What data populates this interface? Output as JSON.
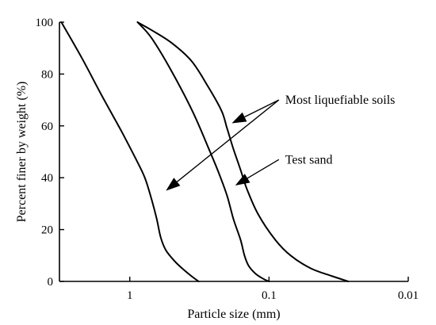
{
  "chart_data": {
    "type": "line",
    "xlabel": "Particle size (mm)",
    "ylabel": "Percent finer by weight (%)",
    "x_scale": "log",
    "x_reversed": true,
    "xlim": [
      3.2,
      0.01
    ],
    "ylim": [
      0,
      100
    ],
    "x_ticks": [
      1,
      0.1,
      0.01
    ],
    "x_tick_labels": [
      "1",
      "0.1",
      "0.01"
    ],
    "y_ticks": [
      0,
      20,
      40,
      60,
      80,
      100
    ],
    "y_tick_labels": [
      "0",
      "20",
      "40",
      "60",
      "80",
      "100"
    ],
    "grid": false,
    "series": [
      {
        "role": "liquefiable-envelope-coarse",
        "x": [
          3.1,
          2.2,
          1.6,
          1.15,
          0.9,
          0.78,
          0.7,
          0.64,
          0.6,
          0.55,
          0.48,
          0.42,
          0.36,
          0.32
        ],
        "y": [
          100,
          86,
          72,
          58,
          47,
          40,
          32,
          24,
          17,
          12,
          8,
          5,
          2,
          0
        ]
      },
      {
        "role": "test-sand",
        "x": [
          0.88,
          0.7,
          0.5,
          0.35,
          0.27,
          0.23,
          0.2,
          0.18,
          0.16,
          0.15,
          0.14,
          0.125,
          0.11,
          0.1
        ],
        "y": [
          100,
          94,
          81,
          65,
          51,
          42,
          33,
          24,
          16,
          10,
          6,
          3,
          1,
          0
        ]
      },
      {
        "role": "liquefiable-envelope-fine",
        "x": [
          0.88,
          0.7,
          0.5,
          0.36,
          0.28,
          0.22,
          0.2,
          0.18,
          0.16,
          0.145,
          0.12,
          0.09,
          0.07,
          0.05,
          0.035,
          0.027
        ],
        "y": [
          100,
          97,
          92,
          85,
          76,
          66,
          59,
          51,
          43,
          36,
          26,
          16,
          10,
          5,
          2,
          0
        ]
      }
    ],
    "annotations": [
      {
        "text": "Most liquefiable soils",
        "anchor": [
          0.085,
          70
        ],
        "arrows_to": [
          [
            0.185,
            61
          ],
          [
            0.55,
            35
          ]
        ]
      },
      {
        "text": "Test sand",
        "anchor": [
          0.085,
          47
        ],
        "arrows_to": [
          [
            0.175,
            37
          ]
        ]
      }
    ]
  }
}
